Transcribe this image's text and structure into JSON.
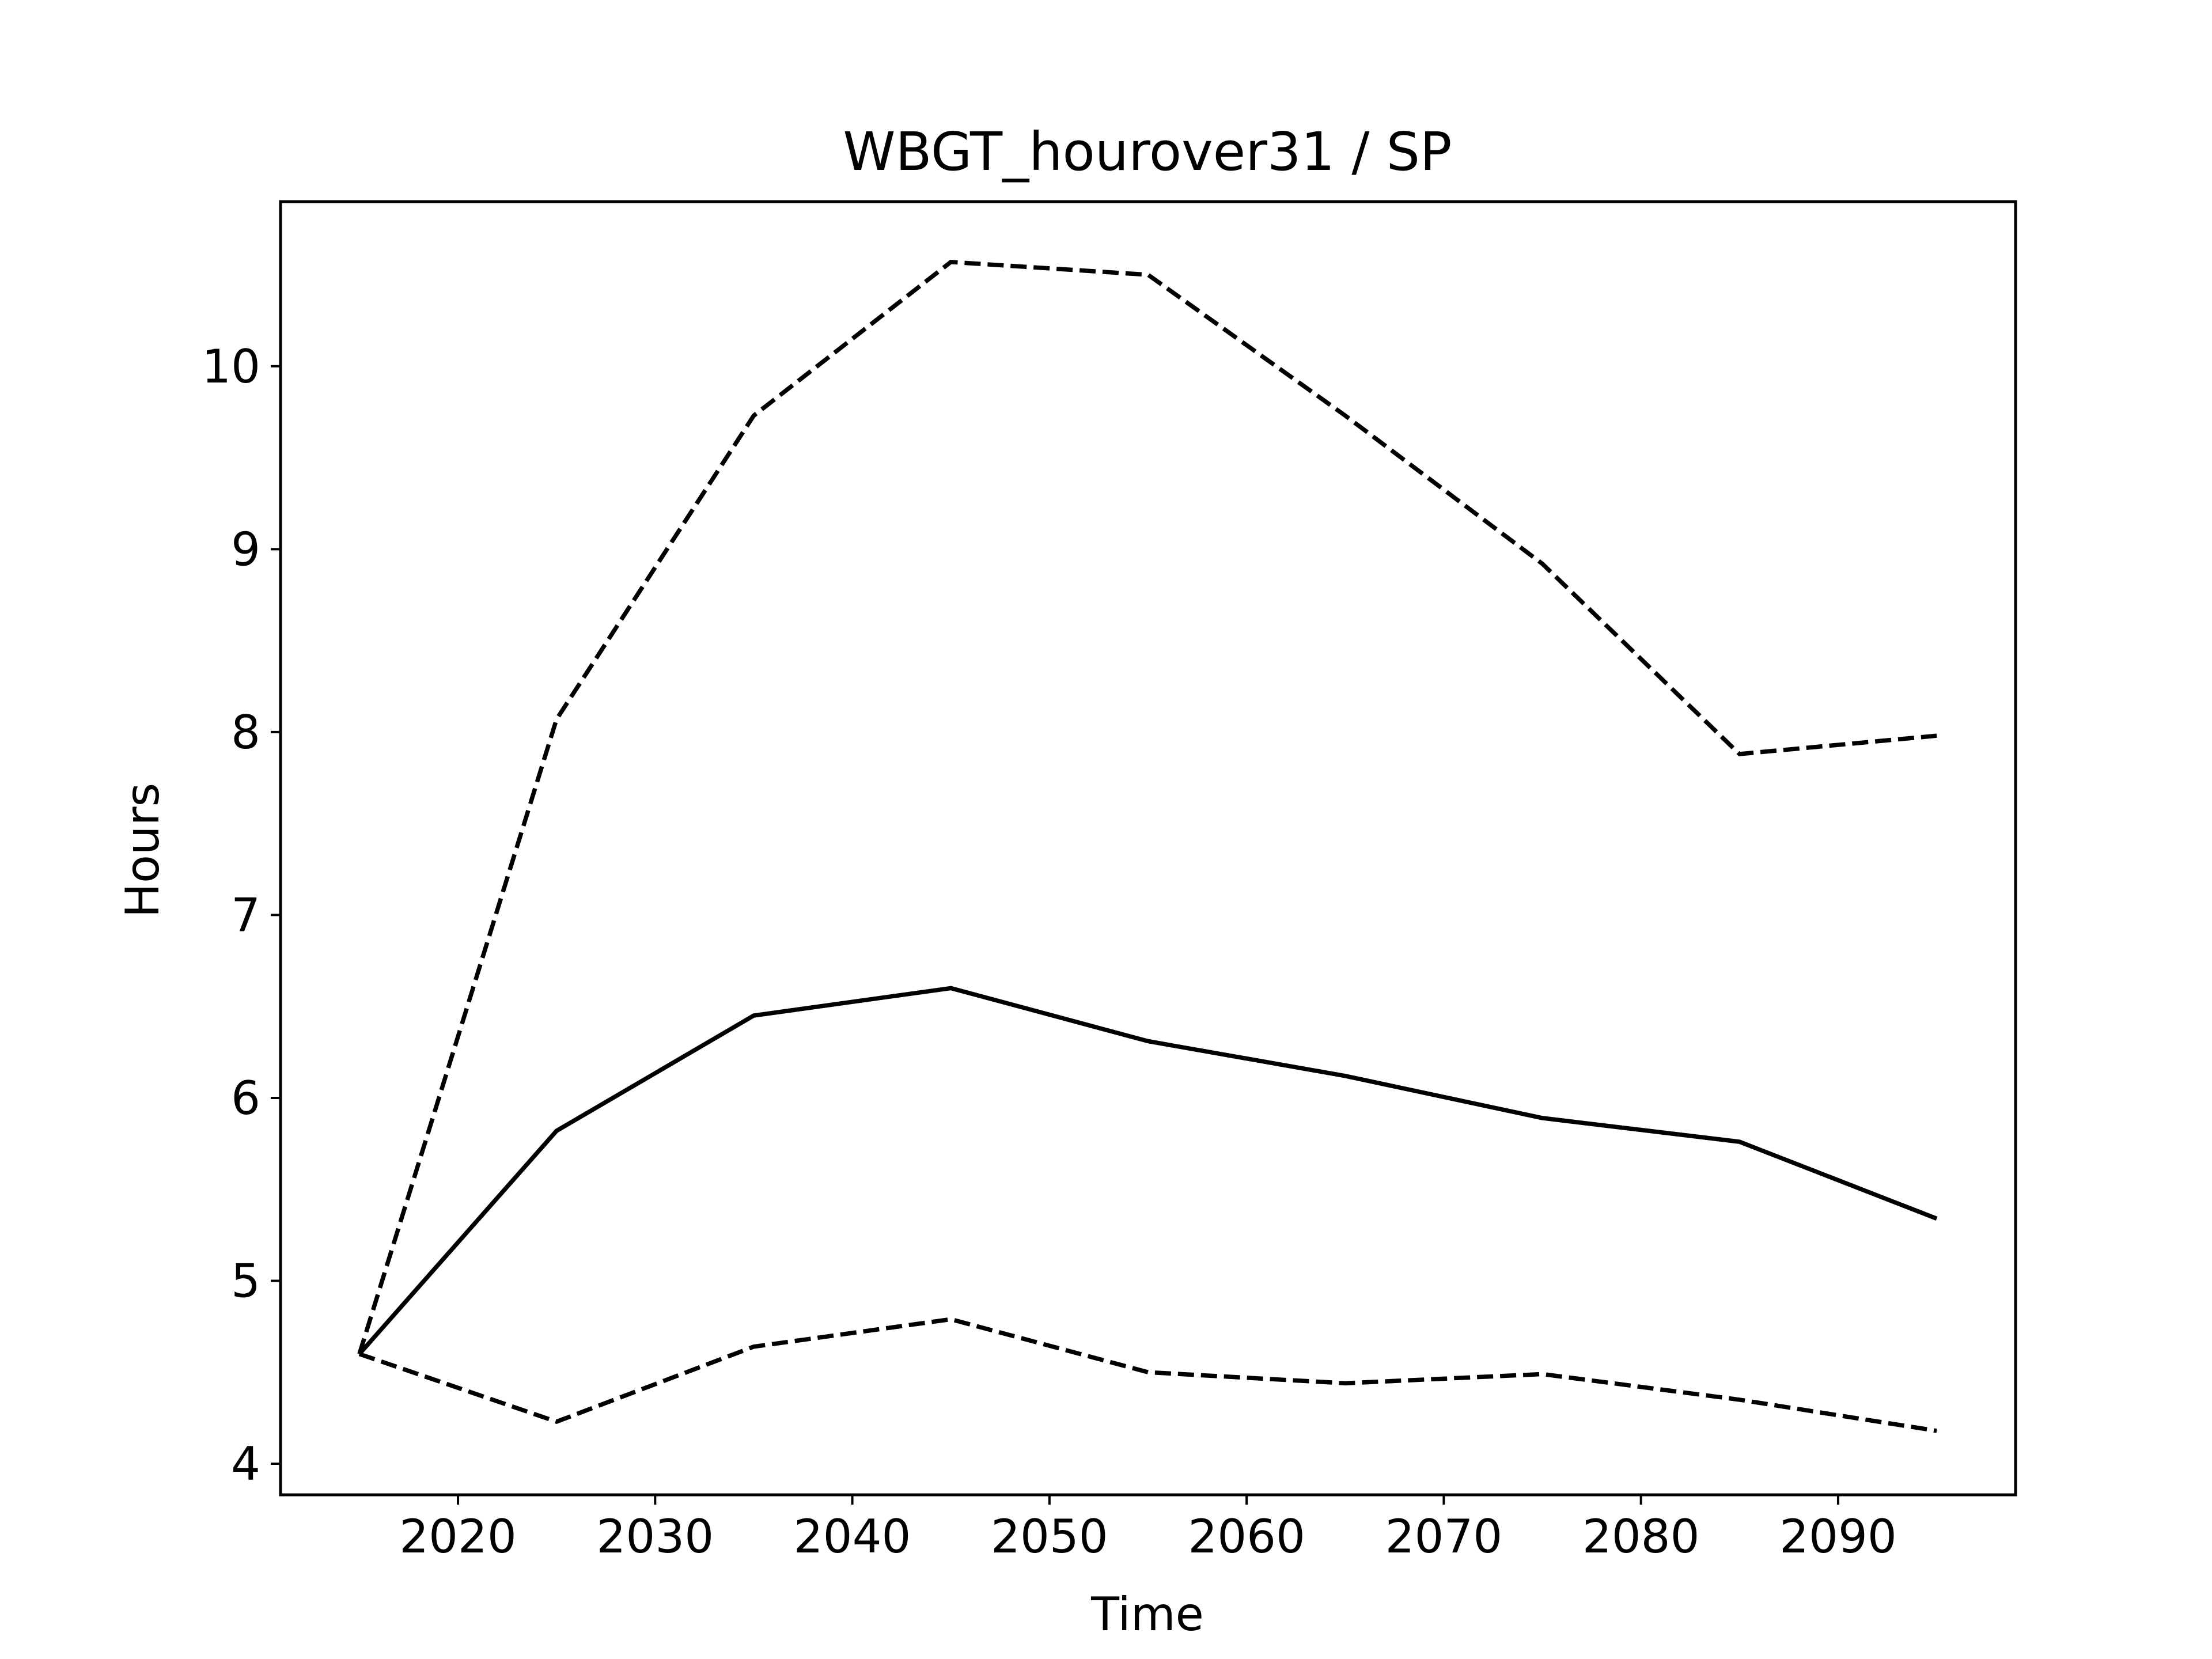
{
  "chart_data": {
    "type": "line",
    "title": "WBGT_hourover31 / SP",
    "xlabel": "Time",
    "ylabel": "Hours",
    "xlim": [
      2011,
      2099
    ],
    "ylim": [
      3.83,
      10.9
    ],
    "xticks": [
      2020,
      2030,
      2040,
      2050,
      2060,
      2070,
      2080,
      2090
    ],
    "yticks": [
      4,
      5,
      6,
      7,
      8,
      9,
      10
    ],
    "grid": false,
    "legend": "none",
    "x": [
      2015,
      2025,
      2035,
      2045,
      2055,
      2065,
      2075,
      2085,
      2095
    ],
    "series": [
      {
        "style": "dashed",
        "color": "#000000",
        "values": [
          4.6,
          8.07,
          9.73,
          10.57,
          10.5,
          9.73,
          8.92,
          7.88,
          7.98
        ]
      },
      {
        "style": "solid",
        "color": "#000000",
        "values": [
          4.6,
          5.82,
          6.45,
          6.6,
          6.31,
          6.12,
          5.89,
          5.76,
          5.34
        ]
      },
      {
        "style": "dashed",
        "color": "#000000",
        "values": [
          4.6,
          4.23,
          4.64,
          4.79,
          4.5,
          4.44,
          4.49,
          4.35,
          4.18
        ]
      }
    ]
  }
}
